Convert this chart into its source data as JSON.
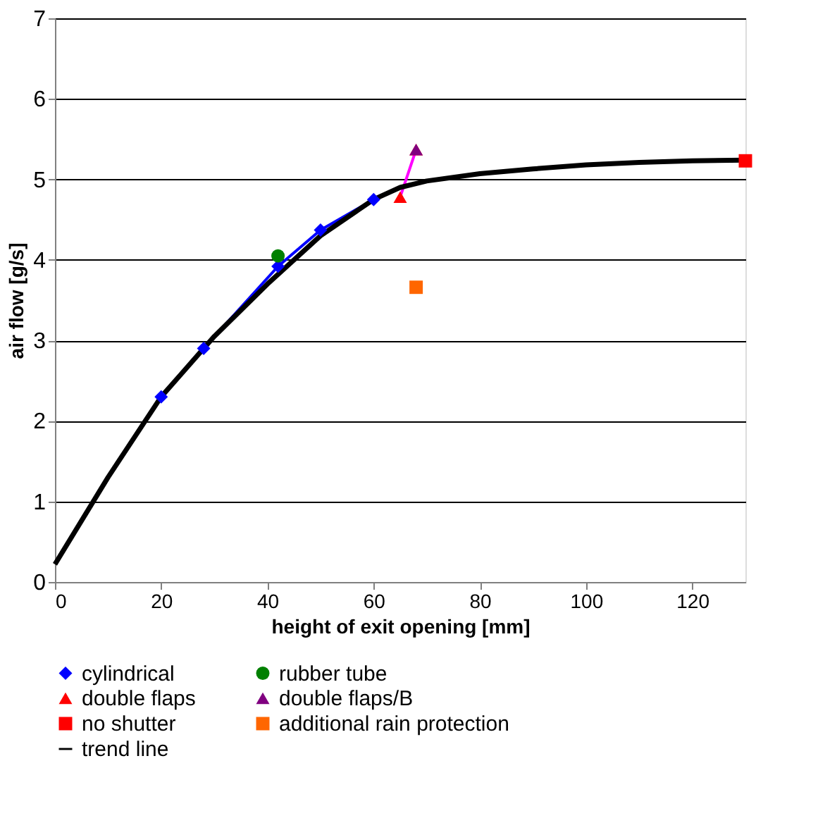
{
  "chart_data": {
    "type": "scatter",
    "xlabel": "height of exit opening  [mm]",
    "ylabel": "air flow  [g/s]",
    "xlim": [
      0,
      130
    ],
    "xticks": [
      0,
      20,
      40,
      60,
      80,
      100,
      120
    ],
    "ylim": [
      0,
      7
    ],
    "yticks": [
      0,
      1,
      2,
      3,
      4,
      5,
      6,
      7
    ],
    "grid": "y",
    "legend": "bottom",
    "series": [
      {
        "name": "cylindrical",
        "type": "line",
        "marker": "diamond",
        "color": "#0000ff",
        "x": [
          20,
          28,
          42,
          50,
          60
        ],
        "values": [
          2.3,
          2.9,
          3.92,
          4.37,
          4.75
        ]
      },
      {
        "name": "rubber tube",
        "marker": "circle",
        "color": "#008000",
        "x": [
          42
        ],
        "values": [
          4.05
        ]
      },
      {
        "name": "double flaps",
        "type": "line",
        "marker": "triangle",
        "color": "#ff00ff",
        "colors": [
          "#ff0000",
          "#ff0000"
        ],
        "x": [
          65,
          68
        ],
        "values": [
          4.78,
          5.37
        ]
      },
      {
        "name": "double flaps/B",
        "marker": "triangle",
        "color": "#800080",
        "x": [
          68
        ],
        "values": [
          5.37
        ]
      },
      {
        "name": "no shutter",
        "marker": "square",
        "color": "#ff0000",
        "x": [
          130
        ],
        "values": [
          5.23
        ]
      },
      {
        "name": "additional rain protection",
        "marker": "square",
        "color": "#ff6600",
        "x": [
          68
        ],
        "values": [
          3.66
        ]
      },
      {
        "name": "trend line",
        "type": "line",
        "marker": "none",
        "color": "#000000",
        "x": [
          0,
          10,
          20,
          30,
          40,
          50,
          60,
          65,
          70,
          80,
          90,
          100,
          110,
          120,
          130
        ],
        "values": [
          0.22,
          1.3,
          2.3,
          3.05,
          3.7,
          4.3,
          4.75,
          4.9,
          4.98,
          5.07,
          5.13,
          5.18,
          5.21,
          5.23,
          5.24
        ]
      }
    ]
  }
}
